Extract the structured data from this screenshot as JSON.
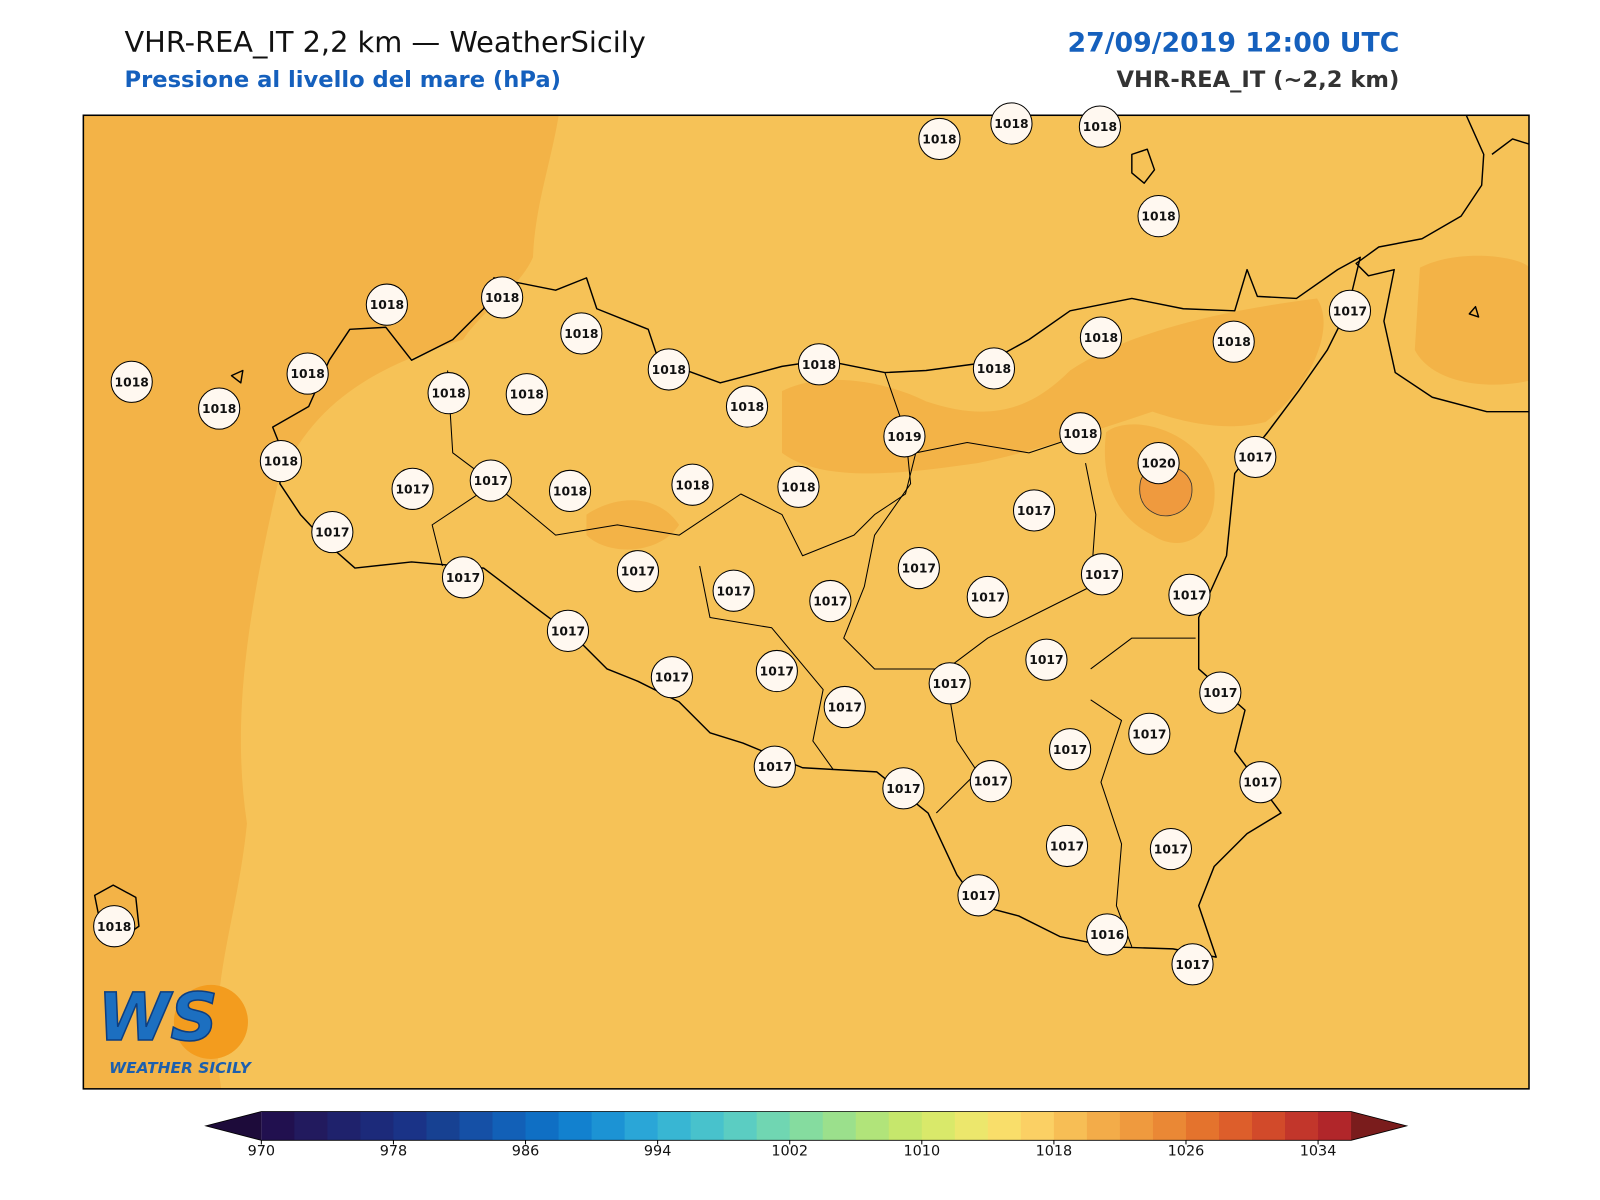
{
  "header": {
    "title": "VHR-REA_IT 2,2 km — WeatherSicily",
    "subtitle": "Pressione al livello del mare (hPa)",
    "datetime": "27/09/2019 12:00 UTC",
    "model": "VHR-REA_IT (~2,2 km)"
  },
  "stations": {
    "values": [
      1018,
      1018,
      1018,
      1018,
      1018,
      1018,
      1018,
      1018,
      1018,
      1018,
      1018,
      1018,
      1017,
      1018,
      1018,
      1018,
      1018,
      1018,
      1018,
      1019,
      1018,
      1020,
      1017,
      1018,
      1017,
      1017,
      1018,
      1018,
      1018,
      1017,
      1017,
      1017,
      1017,
      1017,
      1017,
      1017,
      1017,
      1017,
      1017,
      1017,
      1017,
      1017,
      1017,
      1017,
      1017,
      1017,
      1017,
      1017,
      1017,
      1017,
      1017,
      1017,
      1017,
      1017,
      1017,
      1016,
      1017,
      1018
    ]
  },
  "colorbar": {
    "ticks": [
      970,
      978,
      986,
      994,
      1002,
      1010,
      1018,
      1026,
      1034
    ],
    "colors": [
      "#21104f",
      "#221a5e",
      "#1f226c",
      "#1c2a7a",
      "#1a3387",
      "#174192",
      "#1550a6",
      "#1260b7",
      "#0f6fc4",
      "#1281cf",
      "#1c93d4",
      "#2aa6d7",
      "#38b6d3",
      "#48c2cc",
      "#5bcdc2",
      "#70d6b2",
      "#85dc9f",
      "#9be08c",
      "#b1e47a",
      "#c6e76c",
      "#d9e96a",
      "#ece76c",
      "#f9de6a",
      "#fbd064",
      "#f7be55",
      "#f3ac49",
      "#ef9a3e",
      "#ea8835",
      "#e4732d",
      "#dd5e2b",
      "#d24a2a",
      "#c2362b",
      "#b1262a"
    ],
    "under_color": "#1d0b3a",
    "over_color": "#7a1c1c"
  },
  "logo": {
    "mark": "WS",
    "name": "WEATHER SICILY"
  }
}
